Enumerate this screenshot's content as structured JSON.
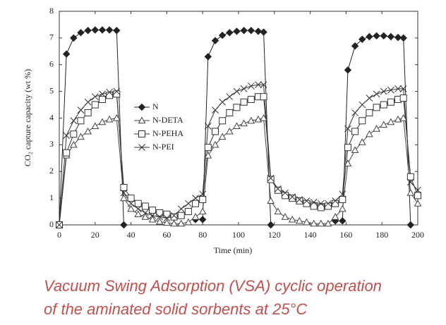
{
  "chart_data": {
    "type": "line",
    "xlabel": "Time (min)",
    "ylabel": "CO₂ capture capacity (wt %)",
    "caption": [
      "Vacuum Swing Adsorption (VSA) cyclic operation",
      "of the aminated solid sorbents at 25°C"
    ],
    "x": [
      0,
      4,
      8,
      12,
      16,
      20,
      24,
      28,
      32,
      36,
      40,
      44,
      48,
      52,
      56,
      60,
      64,
      68,
      72,
      76,
      80,
      83,
      87,
      91,
      95,
      99,
      103,
      107,
      111,
      114,
      118,
      122,
      126,
      130,
      134,
      138,
      142,
      146,
      150,
      154,
      158,
      161,
      165,
      169,
      173,
      177,
      181,
      185,
      189,
      192,
      196,
      200
    ],
    "xlim": [
      0,
      200
    ],
    "xticks": [
      0,
      20,
      40,
      60,
      80,
      100,
      120,
      140,
      160,
      180,
      200
    ],
    "ylim": [
      0,
      8
    ],
    "yticks": [
      0,
      1,
      2,
      3,
      4,
      5,
      6,
      7,
      8
    ],
    "legend": "center-left",
    "series": [
      {
        "name": "N",
        "color": "#222222",
        "marker": "diamond-filled",
        "values": [
          0,
          6.4,
          7.0,
          7.2,
          7.28,
          7.3,
          7.3,
          7.3,
          7.28,
          0,
          null,
          null,
          null,
          null,
          null,
          null,
          null,
          null,
          null,
          0.2,
          0.2,
          6.3,
          6.9,
          7.1,
          7.2,
          7.25,
          7.28,
          7.28,
          7.25,
          7.22,
          0,
          null,
          null,
          null,
          null,
          null,
          null,
          null,
          null,
          0.15,
          0.15,
          5.8,
          6.7,
          6.95,
          7.05,
          7.08,
          7.08,
          7.05,
          7.02,
          7.0,
          0,
          null
        ]
      },
      {
        "name": "N-DETA",
        "color": "#444444",
        "marker": "triangle",
        "values": [
          0,
          2.6,
          3.0,
          3.3,
          3.5,
          3.7,
          3.85,
          3.95,
          4.0,
          1.0,
          0.6,
          0.4,
          0.3,
          0.2,
          0.12,
          0.08,
          0.05,
          0.05,
          0.1,
          0.3,
          0.5,
          2.6,
          3.0,
          3.3,
          3.5,
          3.7,
          3.8,
          3.9,
          3.95,
          4.0,
          0.9,
          0.5,
          0.3,
          0.2,
          0.15,
          0.1,
          0.05,
          0.05,
          0.05,
          0.3,
          0.6,
          2.3,
          2.8,
          3.1,
          3.4,
          3.6,
          3.75,
          3.85,
          3.95,
          4.0,
          1.2,
          0.8
        ]
      },
      {
        "name": "N-PEHA",
        "color": "#333333",
        "marker": "square",
        "values": [
          0,
          2.7,
          3.4,
          3.9,
          4.2,
          4.5,
          4.7,
          4.85,
          4.9,
          1.4,
          1.0,
          0.8,
          0.7,
          0.55,
          0.45,
          0.4,
          0.3,
          0.35,
          0.5,
          0.8,
          0.95,
          2.9,
          3.5,
          3.9,
          4.2,
          4.4,
          4.6,
          4.7,
          4.8,
          4.8,
          1.7,
          1.3,
          1.1,
          1.0,
          0.9,
          0.8,
          0.7,
          0.65,
          0.7,
          0.8,
          0.95,
          2.9,
          3.5,
          3.9,
          4.2,
          4.4,
          4.5,
          4.6,
          4.7,
          4.75,
          1.8,
          1.1
        ]
      },
      {
        "name": "N-PEI",
        "color": "#333333",
        "marker": "x",
        "values": [
          0,
          3.35,
          3.9,
          4.3,
          4.6,
          4.8,
          4.9,
          4.97,
          5.0,
          1.2,
          0.8,
          0.6,
          0.45,
          0.35,
          0.3,
          0.25,
          0.35,
          0.6,
          0.8,
          1.0,
          1.15,
          3.7,
          4.3,
          4.6,
          4.8,
          5.0,
          5.1,
          5.2,
          5.25,
          5.25,
          1.75,
          1.35,
          1.2,
          1.05,
          0.95,
          0.9,
          0.85,
          0.8,
          0.8,
          0.9,
          1.15,
          3.6,
          4.2,
          4.5,
          4.75,
          4.9,
          5.0,
          5.05,
          5.1,
          5.1,
          1.6,
          1.3
        ]
      }
    ]
  }
}
